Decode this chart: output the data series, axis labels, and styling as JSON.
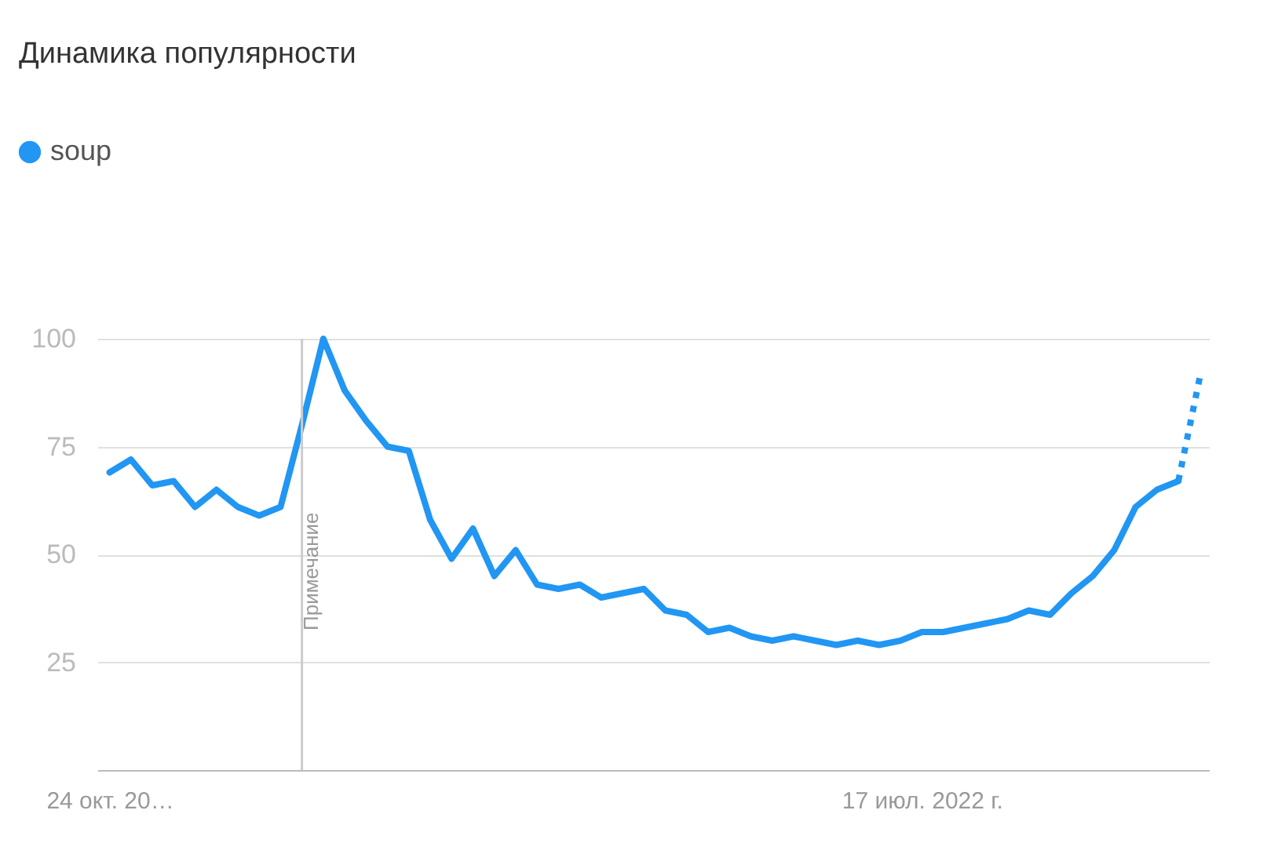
{
  "chart_data": {
    "type": "line",
    "title": "Динамика популярности",
    "legend": "top left",
    "grid": "y",
    "marker": "none",
    "x": [
      "2021-10-24",
      "2021-10-31",
      "2021-11-07",
      "2021-11-14",
      "2021-11-21",
      "2021-11-28",
      "2021-12-05",
      "2021-12-12",
      "2021-12-19",
      "2021-12-26",
      "2022-01-02",
      "2022-01-09",
      "2022-01-16",
      "2022-01-23",
      "2022-01-30",
      "2022-02-06",
      "2022-02-13",
      "2022-02-20",
      "2022-02-27",
      "2022-03-06",
      "2022-03-13",
      "2022-03-20",
      "2022-03-27",
      "2022-04-03",
      "2022-04-10",
      "2022-04-17",
      "2022-04-24",
      "2022-05-01",
      "2022-05-08",
      "2022-05-15",
      "2022-05-22",
      "2022-05-29",
      "2022-06-05",
      "2022-06-12",
      "2022-06-19",
      "2022-06-26",
      "2022-07-03",
      "2022-07-10",
      "2022-07-17",
      "2022-07-24",
      "2022-07-31",
      "2022-08-07",
      "2022-08-14",
      "2022-08-21",
      "2022-08-28",
      "2022-09-04",
      "2022-09-11",
      "2022-09-18",
      "2022-09-25",
      "2022-10-02",
      "2022-10-09",
      "2022-10-16"
    ],
    "series": [
      {
        "name": "soup",
        "color": "#2196f3",
        "line_style": "solid",
        "values": [
          69,
          72,
          66,
          67,
          61,
          65,
          61,
          59,
          61,
          80,
          100,
          88,
          81,
          75,
          74,
          58,
          49,
          56,
          45,
          51,
          43,
          42,
          43,
          40,
          41,
          42,
          37,
          36,
          32,
          33,
          31,
          30,
          31,
          30,
          29,
          30,
          29,
          30,
          32,
          32,
          33,
          34,
          35,
          37,
          36,
          41,
          45,
          51,
          61,
          65,
          67,
          null
        ]
      },
      {
        "color": "#2196f3",
        "line_style": "dotted",
        "values": [
          null,
          null,
          null,
          null,
          null,
          null,
          null,
          null,
          null,
          null,
          null,
          null,
          null,
          null,
          null,
          null,
          null,
          null,
          null,
          null,
          null,
          null,
          null,
          null,
          null,
          null,
          null,
          null,
          null,
          null,
          null,
          null,
          null,
          null,
          null,
          null,
          null,
          null,
          null,
          null,
          null,
          null,
          null,
          null,
          null,
          null,
          null,
          null,
          null,
          null,
          67,
          91
        ]
      }
    ],
    "xlim": [
      "2021-10-20",
      "2022-10-19"
    ],
    "xticks": [
      {
        "value": "2021-10-24",
        "label": "24 окт. 20…"
      },
      {
        "value": "2022-07-17",
        "label": "17 июл. 2022 г."
      }
    ],
    "ylim": [
      0,
      100
    ],
    "yticks": [
      25,
      50,
      75,
      100
    ],
    "ref_lines": [
      {
        "axis": "x",
        "value": "2021-12-26",
        "label": "Примечание",
        "color": "#cccccc"
      }
    ]
  }
}
